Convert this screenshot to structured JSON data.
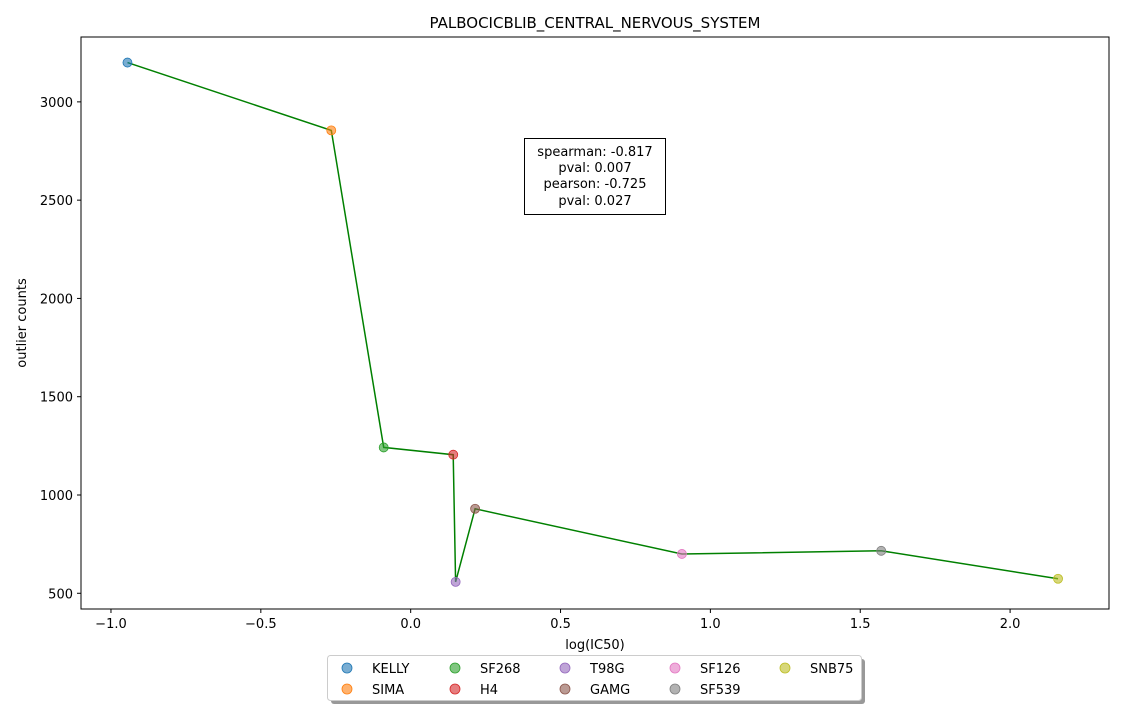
{
  "chart_data": {
    "type": "scatter",
    "title": "PALBOCICBLIB_CENTRAL_NERVOUS_SYSTEM",
    "xlabel": "log(IC50)",
    "ylabel": "outlier counts",
    "xlim": [
      -1.1,
      2.33
    ],
    "ylim": [
      420,
      3330
    ],
    "xticks": [
      -1.0,
      -0.5,
      0.0,
      0.5,
      1.0,
      1.5,
      2.0
    ],
    "xtick_labels": [
      "−1.0",
      "−0.5",
      "0.0",
      "0.5",
      "1.0",
      "1.5",
      "2.0"
    ],
    "yticks": [
      500,
      1000,
      1500,
      2000,
      2500,
      3000
    ],
    "ytick_labels": [
      "500",
      "1000",
      "1500",
      "2000",
      "2500",
      "3000"
    ],
    "grid": false,
    "legend_placement": "bottom-center",
    "line_color": "#008000",
    "points": [
      {
        "name": "KELLY",
        "x": -0.945,
        "y": 3200,
        "color": "#1f77b4"
      },
      {
        "name": "SIMA",
        "x": -0.265,
        "y": 2855,
        "color": "#ff7f0e"
      },
      {
        "name": "SF268",
        "x": -0.09,
        "y": 1242,
        "color": "#2ca02c"
      },
      {
        "name": "H4",
        "x": 0.142,
        "y": 1205,
        "color": "#d62728"
      },
      {
        "name": "T98G",
        "x": 0.15,
        "y": 558,
        "color": "#9467bd"
      },
      {
        "name": "GAMG",
        "x": 0.215,
        "y": 930,
        "color": "#8c564b"
      },
      {
        "name": "SF126",
        "x": 0.905,
        "y": 700,
        "color": "#e377c2"
      },
      {
        "name": "SF539",
        "x": 1.57,
        "y": 716,
        "color": "#7f7f7f"
      },
      {
        "name": "SNB75",
        "x": 2.16,
        "y": 574,
        "color": "#bcbd22"
      }
    ],
    "annotation": [
      "spearman: -0.817",
      "pval: 0.007",
      "pearson: -0.725",
      "pval: 0.027"
    ]
  }
}
